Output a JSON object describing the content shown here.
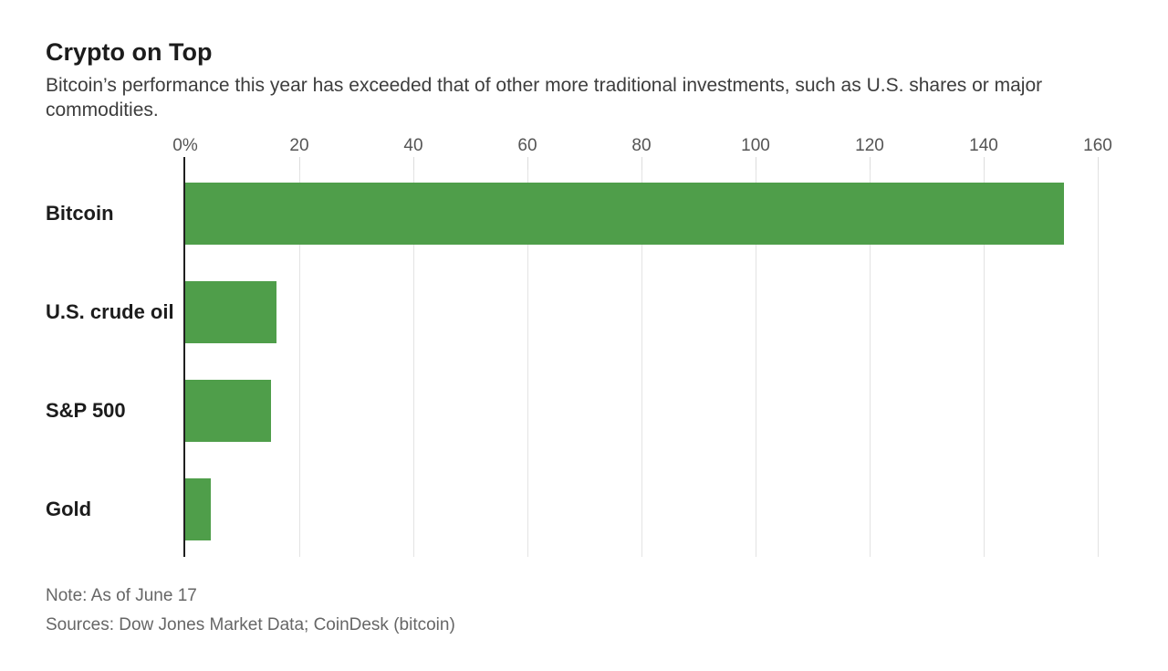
{
  "header": {
    "title": "Crypto on Top",
    "subtitle": "Bitcoin’s performance this year has exceeded that of other more traditional investments, such as U.S. shares or major commodities."
  },
  "chart_data": {
    "type": "bar",
    "orientation": "horizontal",
    "title": "Crypto on Top",
    "subtitle": "Bitcoin’s performance this year has exceeded that of other more traditional investments, such as U.S. shares or major commodities.",
    "categories": [
      "Bitcoin",
      "U.S. crude oil",
      "S&P 500",
      "Gold"
    ],
    "values": [
      154,
      16,
      15,
      4.5
    ],
    "unit": "percent change",
    "xlim": [
      0,
      160
    ],
    "x_ticks": [
      {
        "label": "0%",
        "value": 0
      },
      {
        "label": "20",
        "value": 20
      },
      {
        "label": "40",
        "value": 40
      },
      {
        "label": "60",
        "value": 60
      },
      {
        "label": "80",
        "value": 80
      },
      {
        "label": "100",
        "value": 100
      },
      {
        "label": "120",
        "value": 120
      },
      {
        "label": "140",
        "value": 140
      },
      {
        "label": "160",
        "value": 160
      }
    ],
    "grid": "vertical light gridlines on",
    "legend": "none",
    "bar_color": "#4f9e4a",
    "axis_color": "#1f1f1f",
    "gridline_color": "#e3e3e3"
  },
  "footer": {
    "note": "Note: As of June 17",
    "sources": "Sources: Dow Jones Market Data; CoinDesk (bitcoin)"
  }
}
